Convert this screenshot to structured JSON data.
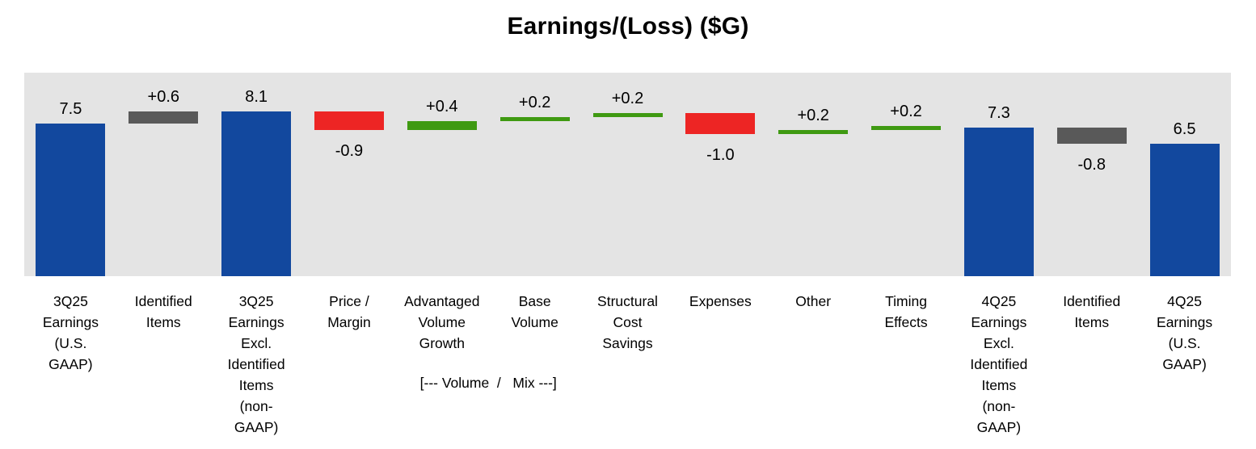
{
  "title": "Earnings/(Loss) ($G)",
  "chart_data": {
    "type": "bar",
    "subtype": "waterfall",
    "title": "Earnings/(Loss) ($G)",
    "ylabel": "",
    "xlabel": "",
    "ylim": [
      0,
      10
    ],
    "grid": false,
    "plot_bg": "#E4E4E4",
    "colors": {
      "total": "#12489E",
      "identified": "#595959",
      "increase": "#3F9A12",
      "decrease": "#ED2524"
    },
    "items": [
      {
        "label": "3Q25\nEarnings\n(U.S.\nGAAP)",
        "value": 7.5,
        "display": "7.5",
        "kind": "total"
      },
      {
        "label": "Identified\nItems",
        "value": 0.6,
        "display": "+0.6",
        "kind": "identified"
      },
      {
        "label": "3Q25\nEarnings\nExcl.\nIdentified\nItems\n(non-\nGAAP)",
        "value": 8.1,
        "display": "8.1",
        "kind": "total"
      },
      {
        "label": "Price /\nMargin",
        "value": -0.9,
        "display": "-0.9",
        "kind": "decrease"
      },
      {
        "label": "Advantaged\nVolume\nGrowth",
        "value": 0.4,
        "display": "+0.4",
        "kind": "increase"
      },
      {
        "label": "Base\nVolume",
        "value": 0.2,
        "display": "+0.2",
        "kind": "increase"
      },
      {
        "label": "Structural\nCost\nSavings",
        "value": 0.2,
        "display": "+0.2",
        "kind": "increase"
      },
      {
        "label": "Expenses",
        "value": -1.0,
        "display": "-1.0",
        "kind": "decrease"
      },
      {
        "label": "Other",
        "value": 0.2,
        "display": "+0.2",
        "kind": "increase"
      },
      {
        "label": "Timing\nEffects",
        "value": 0.2,
        "display": "+0.2",
        "kind": "increase"
      },
      {
        "label": "4Q25\nEarnings\nExcl.\nIdentified\nItems\n(non-\nGAAP)",
        "value": 7.3,
        "display": "7.3",
        "kind": "total"
      },
      {
        "label": "Identified\nItems",
        "value": -0.8,
        "display": "-0.8",
        "kind": "identified"
      },
      {
        "label": "4Q25\nEarnings\n(U.S.\nGAAP)",
        "value": 6.5,
        "display": "6.5",
        "kind": "total"
      }
    ],
    "annotation": "[--- Volume  /   Mix ---]",
    "annotation_between_indices": [
      4,
      5
    ]
  }
}
